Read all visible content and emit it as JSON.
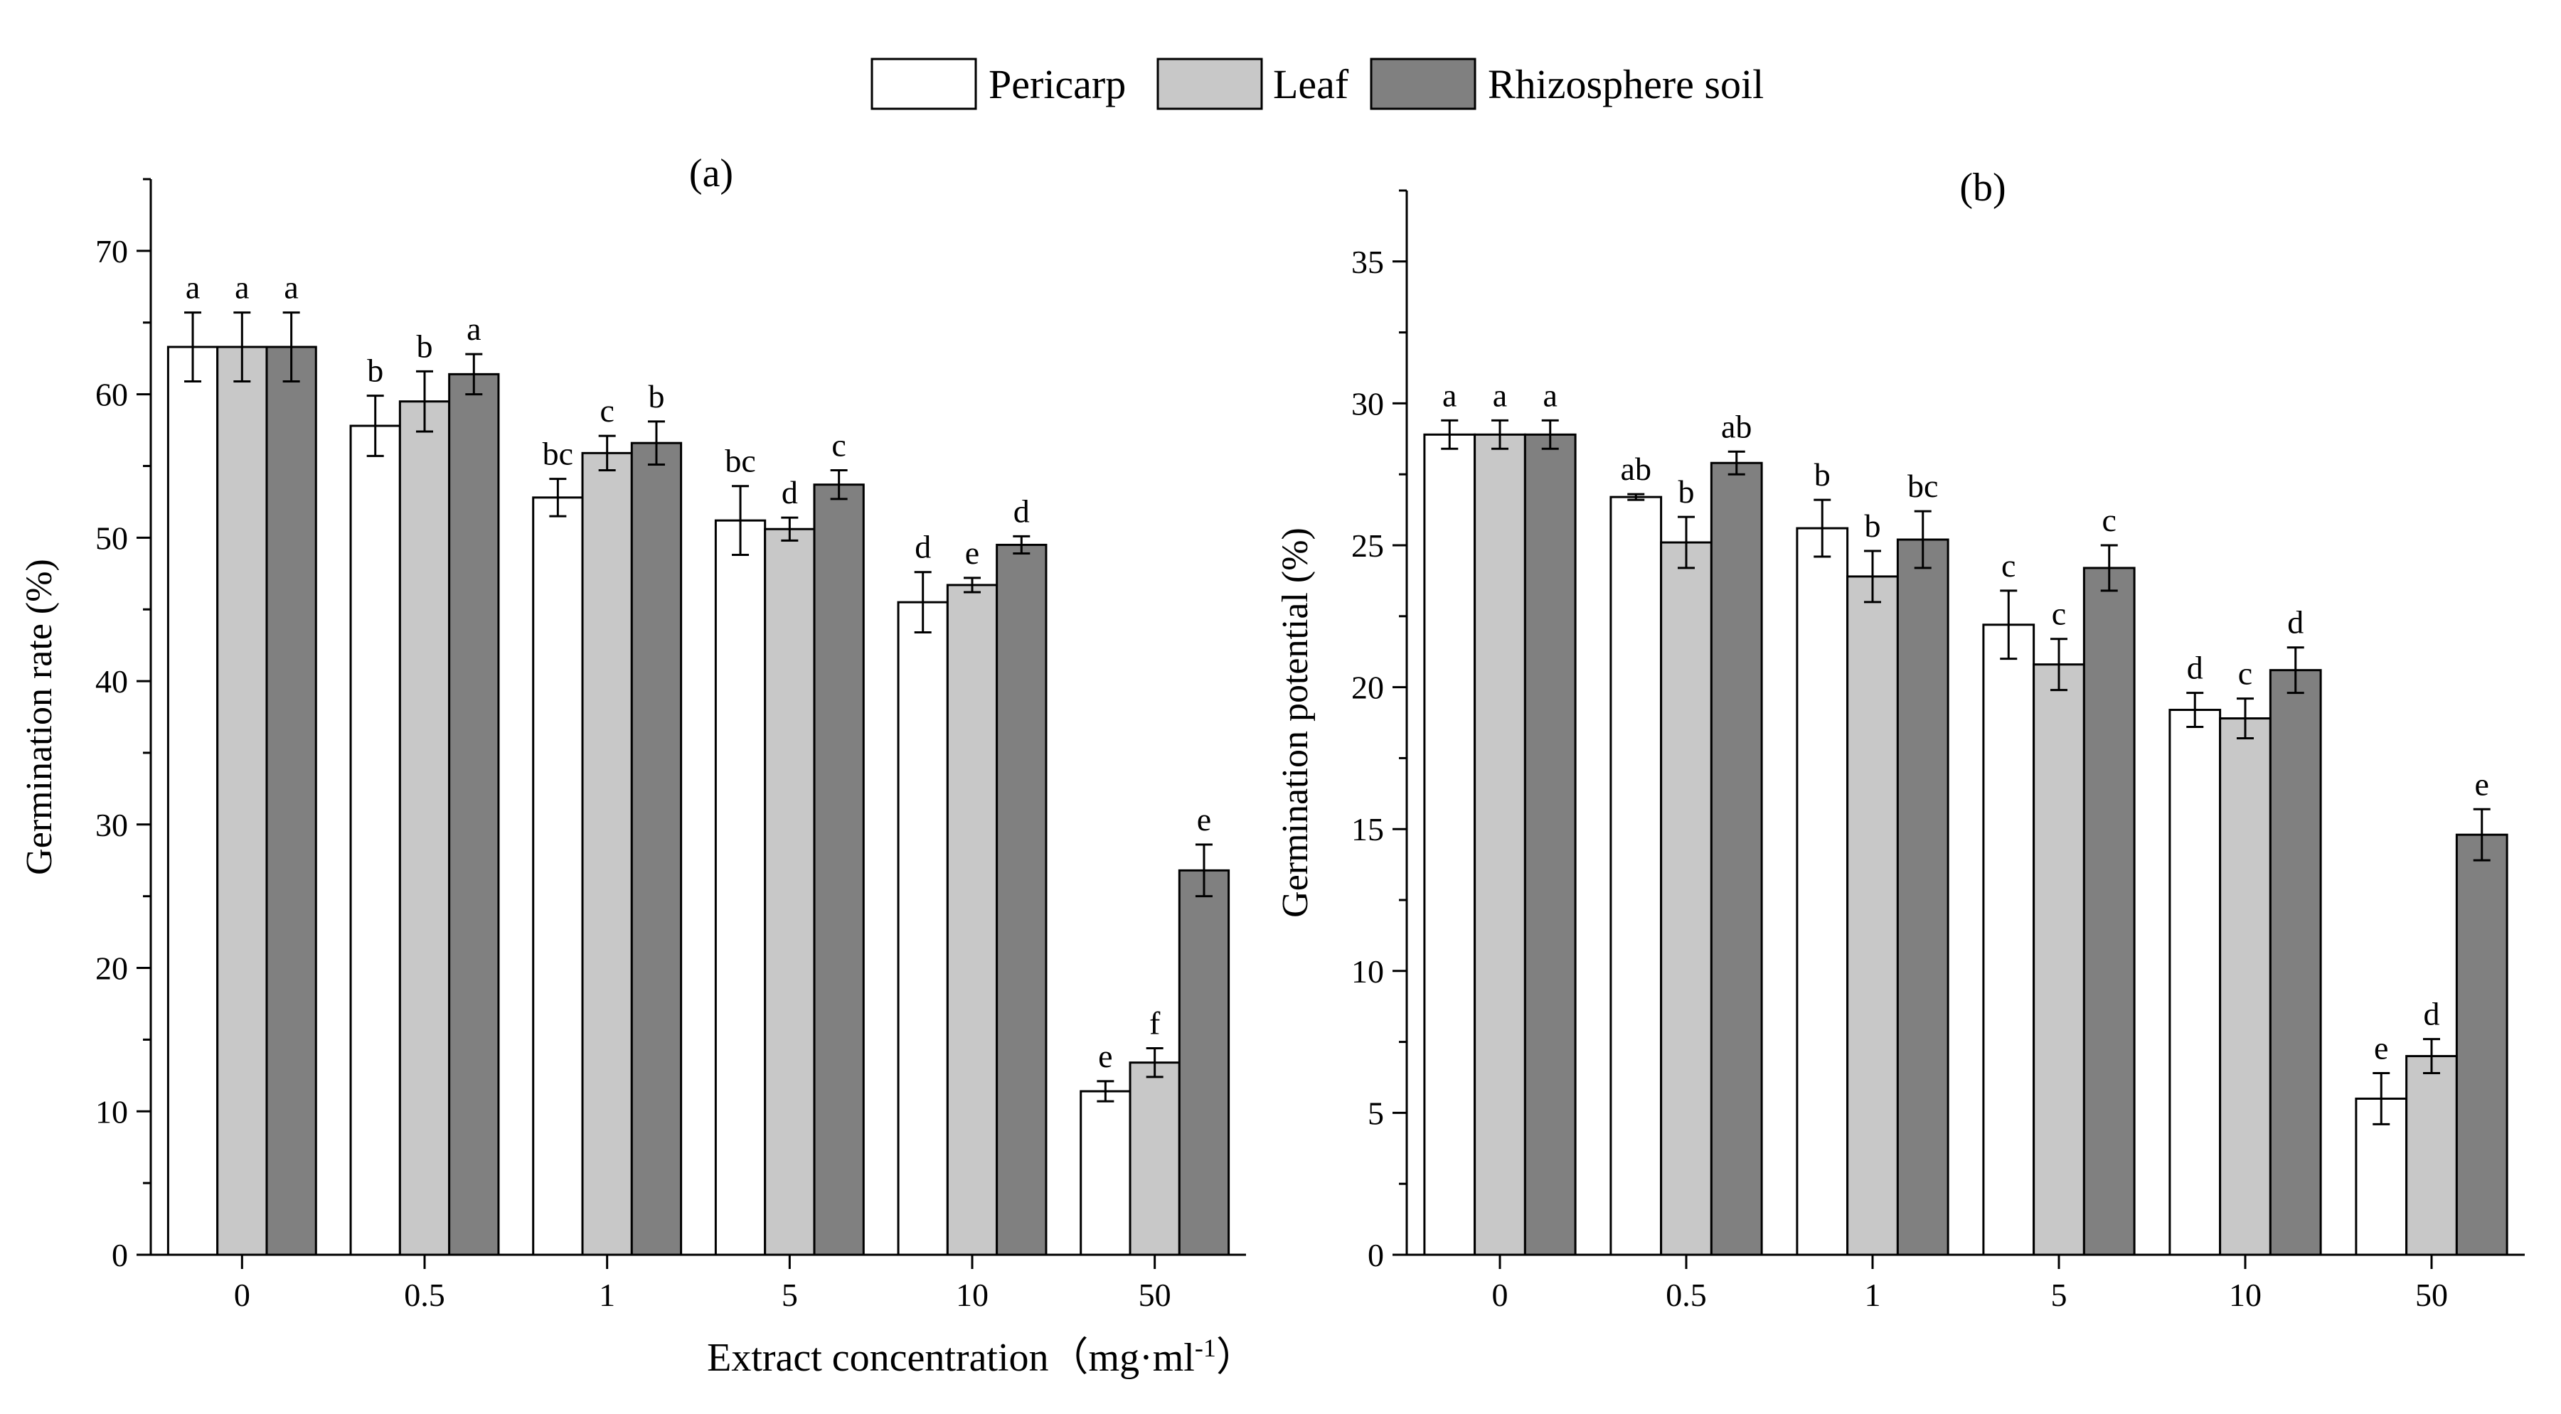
{
  "legend": {
    "items": [
      {
        "label": "Pericarp",
        "color": "#ffffff"
      },
      {
        "label": "Leaf",
        "color": "#c8c8c8"
      },
      {
        "label": "Rhizosphere soil",
        "color": "#808080"
      }
    ]
  },
  "shared_xlabel": {
    "main": "Extract concentration（mg·ml",
    "sup": "-1",
    "tail": "）"
  },
  "chart_data": [
    {
      "type": "bar",
      "panel_label": "(a)",
      "ylabel": "Germination rate (%)",
      "xlabel": "Extract concentration（mg·ml-1）",
      "categories": [
        "0",
        "0.5",
        "1",
        "5",
        "10",
        "50"
      ],
      "ylim": [
        0,
        75
      ],
      "yticks": [
        0,
        10,
        20,
        30,
        40,
        50,
        60,
        70
      ],
      "grid": false,
      "legend_position": "top-center",
      "series": [
        {
          "name": "Pericarp",
          "color": "#ffffff",
          "values": [
            63.3,
            57.8,
            52.8,
            51.2,
            45.5,
            11.4
          ],
          "errors": [
            2.4,
            2.1,
            1.3,
            2.4,
            2.1,
            0.7
          ],
          "letters": [
            "a",
            "b",
            "bc",
            "bc",
            "d",
            "e"
          ]
        },
        {
          "name": "Leaf",
          "color": "#c8c8c8",
          "values": [
            63.3,
            59.5,
            55.9,
            50.6,
            46.7,
            13.4
          ],
          "errors": [
            2.4,
            2.1,
            1.2,
            0.8,
            0.5,
            1.0
          ],
          "letters": [
            "a",
            "b",
            "c",
            "d",
            "e",
            "f"
          ]
        },
        {
          "name": "Rhizosphere soil",
          "color": "#808080",
          "values": [
            63.3,
            61.4,
            56.6,
            53.7,
            49.5,
            26.8
          ],
          "errors": [
            2.4,
            1.4,
            1.5,
            1.0,
            0.6,
            1.8
          ],
          "letters": [
            "a",
            "a",
            "b",
            "c",
            "d",
            "e"
          ]
        }
      ]
    },
    {
      "type": "bar",
      "panel_label": "(b)",
      "ylabel": "Germination potential (%)",
      "xlabel": "Extract concentration（mg·ml-1）",
      "categories": [
        "0",
        "0.5",
        "1",
        "5",
        "10",
        "50"
      ],
      "ylim": [
        0,
        37.5
      ],
      "yticks": [
        0,
        5,
        10,
        15,
        20,
        25,
        30,
        35
      ],
      "grid": false,
      "legend_position": "top-center",
      "series": [
        {
          "name": "Pericarp",
          "color": "#ffffff",
          "values": [
            28.9,
            26.7,
            25.6,
            22.2,
            19.2,
            5.5
          ],
          "errors": [
            0.5,
            0.1,
            1.0,
            1.2,
            0.6,
            0.9
          ],
          "letters": [
            "a",
            "ab",
            "b",
            "c",
            "d",
            "e"
          ]
        },
        {
          "name": "Leaf",
          "color": "#c8c8c8",
          "values": [
            28.9,
            25.1,
            23.9,
            20.8,
            18.9,
            7.0
          ],
          "errors": [
            0.5,
            0.9,
            0.9,
            0.9,
            0.7,
            0.6
          ],
          "letters": [
            "a",
            "b",
            "b",
            "c",
            "c",
            "d"
          ]
        },
        {
          "name": "Rhizosphere soil",
          "color": "#808080",
          "values": [
            28.9,
            27.9,
            25.2,
            24.2,
            20.6,
            14.8
          ],
          "errors": [
            0.5,
            0.4,
            1.0,
            0.8,
            0.8,
            0.9
          ],
          "letters": [
            "a",
            "ab",
            "bc",
            "c",
            "d",
            "e"
          ]
        }
      ]
    }
  ]
}
